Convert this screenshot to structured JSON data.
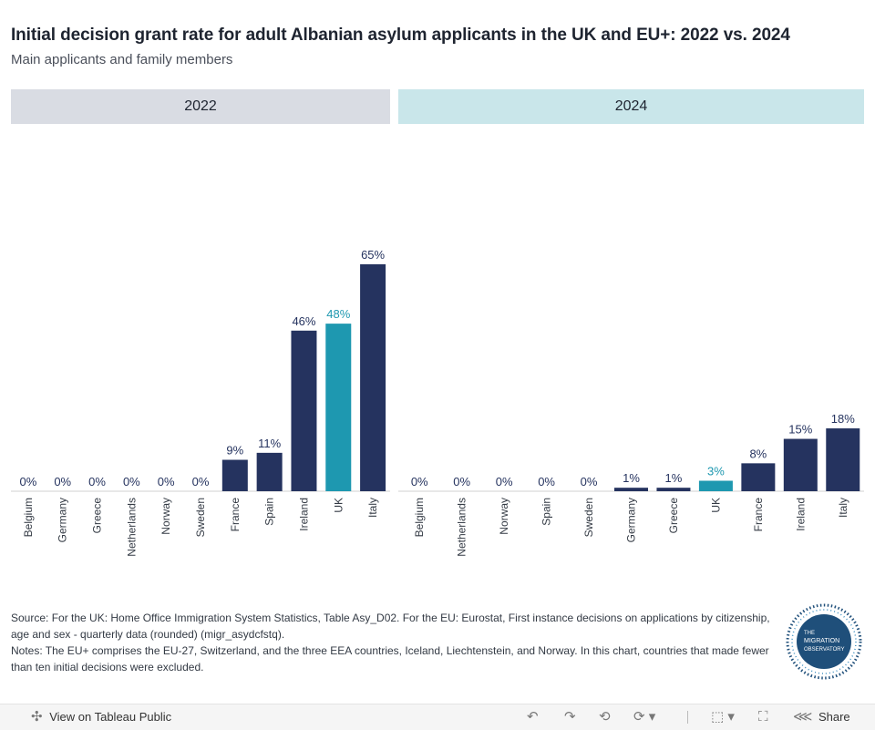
{
  "title": "Initial decision grant rate for adult Albanian asylum applicants in the UK and EU+: 2022 vs. 2024",
  "subtitle": "Main applicants and family members",
  "colors": {
    "default_bar": "#25335f",
    "uk_bar": "#1e98b0",
    "header_2022": "#d9dce3",
    "header_2024": "#c9e6ea"
  },
  "chart_data": [
    {
      "type": "bar",
      "panel": "2022",
      "categories": [
        "Belgium",
        "Germany",
        "Greece",
        "Netherlands",
        "Norway",
        "Sweden",
        "France",
        "Spain",
        "Ireland",
        "UK",
        "Italy"
      ],
      "values": [
        0,
        0,
        0,
        0,
        0,
        0,
        9,
        11,
        46,
        48,
        65
      ],
      "labels": [
        "0%",
        "0%",
        "0%",
        "0%",
        "0%",
        "0%",
        "9%",
        "11%",
        "46%",
        "48%",
        "65%"
      ],
      "highlight": "UK",
      "ylim": [
        0,
        100
      ],
      "unit": "%"
    },
    {
      "type": "bar",
      "panel": "2024",
      "categories": [
        "Belgium",
        "Netherlands",
        "Norway",
        "Spain",
        "Sweden",
        "Germany",
        "Greece",
        "UK",
        "France",
        "Ireland",
        "Italy"
      ],
      "values": [
        0,
        0,
        0,
        0,
        0,
        1,
        1,
        3,
        8,
        15,
        18
      ],
      "labels": [
        "0%",
        "0%",
        "0%",
        "0%",
        "0%",
        "1%",
        "1%",
        "3%",
        "8%",
        "15%",
        "18%"
      ],
      "highlight": "UK",
      "ylim": [
        0,
        100
      ],
      "unit": "%"
    }
  ],
  "footer": {
    "source": "Source: For the UK: Home Office Immigration System Statistics, Table Asy_D02. For the EU: Eurostat, First instance decisions on applications by citizenship, age and sex - quarterly data (rounded) (migr_asydcfstq).",
    "notes": "Notes: The EU+ comprises the EU-27, Switzerland, and the three EEA countries, Iceland, Liechtenstein, and Norway. In this chart, countries that made fewer than ten initial decisions were excluded."
  },
  "logo": {
    "line1": "THE",
    "line2": "MIGRATION",
    "line3": "OBSERVATORY"
  },
  "toolbar": {
    "view_label": "View on Tableau Public",
    "share_label": "Share",
    "icons": [
      "tableau-icon",
      "undo-icon",
      "redo-icon",
      "revert-icon",
      "refresh-icon",
      "download-icon",
      "fullscreen-icon",
      "share-icon"
    ]
  }
}
